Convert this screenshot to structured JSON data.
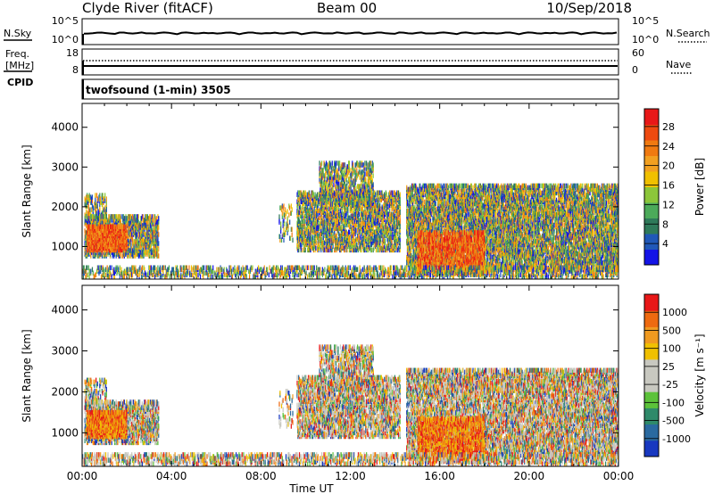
{
  "header": {
    "station": "Clyde River (fitACF)",
    "beam": "Beam 00",
    "date": "10/Sep/2018"
  },
  "noise_panel": {
    "left_label": "N.Sky",
    "right_label": "N.Search",
    "ticks_left": [
      "10^5",
      "10^0"
    ],
    "ticks_right": [
      "10^5",
      "10^0"
    ]
  },
  "freq_panel": {
    "label_top": "Freq.",
    "label_units": "[MHz]",
    "cpid_label": "CPID",
    "right_label": "Nave",
    "ticks_left": [
      "18",
      "8"
    ],
    "ticks_right": [
      "60",
      "0"
    ],
    "cpid_text": "twofsound (1-min) 3505"
  },
  "chart_data": [
    {
      "type": "heatmap",
      "name": "power",
      "ylabel": "Slant Range [km]",
      "yticks": [
        1000,
        2000,
        3000,
        4000
      ],
      "ylim": [
        180,
        4600
      ],
      "colorbar": {
        "label": "Power [dB]",
        "ticks": [
          "4",
          "8",
          "12",
          "16",
          "20",
          "24",
          "28"
        ],
        "colors": [
          "#1414e6",
          "#2058b8",
          "#2f7a5a",
          "#4caa5a",
          "#8cc63a",
          "#f0c000",
          "#f2a020",
          "#f07a10",
          "#ee4a10",
          "#e81818"
        ]
      }
    },
    {
      "type": "heatmap",
      "name": "velocity",
      "ylabel": "Slant Range [km]",
      "yticks": [
        1000,
        2000,
        3000,
        4000
      ],
      "ylim": [
        180,
        4600
      ],
      "colorbar": {
        "label": "Velocity [m s⁻¹]",
        "ticks": [
          "1000",
          "500",
          "100",
          "25",
          "-25",
          "-100",
          "-500",
          "-1000"
        ],
        "colors": [
          "#1838c0",
          "#2a6aa0",
          "#2f8a6a",
          "#5cc23a",
          "#c8c8c0",
          "#c8c8c0",
          "#f0c000",
          "#f09a20",
          "#ee6a10",
          "#e81818"
        ]
      }
    }
  ],
  "time_axis": {
    "label": "Time UT",
    "ticks": [
      "00:00",
      "04:00",
      "08:00",
      "12:00",
      "16:00",
      "20:00",
      "00:00"
    ]
  }
}
